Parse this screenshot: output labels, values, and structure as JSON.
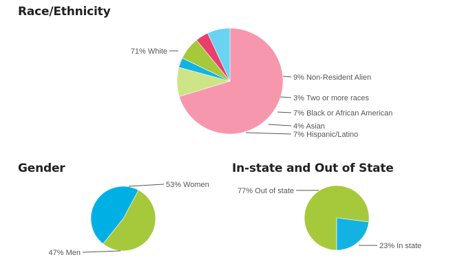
{
  "chart_data": [
    {
      "type": "pie",
      "title": "Race/Ethnicity",
      "slices": [
        {
          "label": "White",
          "value": 71,
          "display": "71% White",
          "color": "#f797ae"
        },
        {
          "label": "Non-Resident Alien",
          "value": 9,
          "display": "9% Non-Resident Alien",
          "color": "#cde487"
        },
        {
          "label": "Two or more races",
          "value": 3,
          "display": "3% Two or more races",
          "color": "#12b3e3"
        },
        {
          "label": "Black or African American",
          "value": 7,
          "display": "7% Black or African American",
          "color": "#a6c93b"
        },
        {
          "label": "Asian",
          "value": 4,
          "display": "4% Asian",
          "color": "#ea3f6b"
        },
        {
          "label": "Hispanic/Latino",
          "value": 7,
          "display": "7% Hispanic/Latino",
          "color": "#6ad3f2"
        }
      ]
    },
    {
      "type": "pie",
      "title": "Gender",
      "slices": [
        {
          "label": "Women",
          "value": 53,
          "display": "53% Women",
          "color": "#a6c93b"
        },
        {
          "label": "Men",
          "value": 47,
          "display": "47% Men",
          "color": "#00b0e5"
        }
      ]
    },
    {
      "type": "pie",
      "title": "In-state and Out of State",
      "slices": [
        {
          "label": "Out of state",
          "value": 77,
          "display": "77% Out of state",
          "color": "#a6c93b"
        },
        {
          "label": "In state",
          "value": 23,
          "display": "23% In state",
          "color": "#12b3e3"
        }
      ]
    }
  ]
}
